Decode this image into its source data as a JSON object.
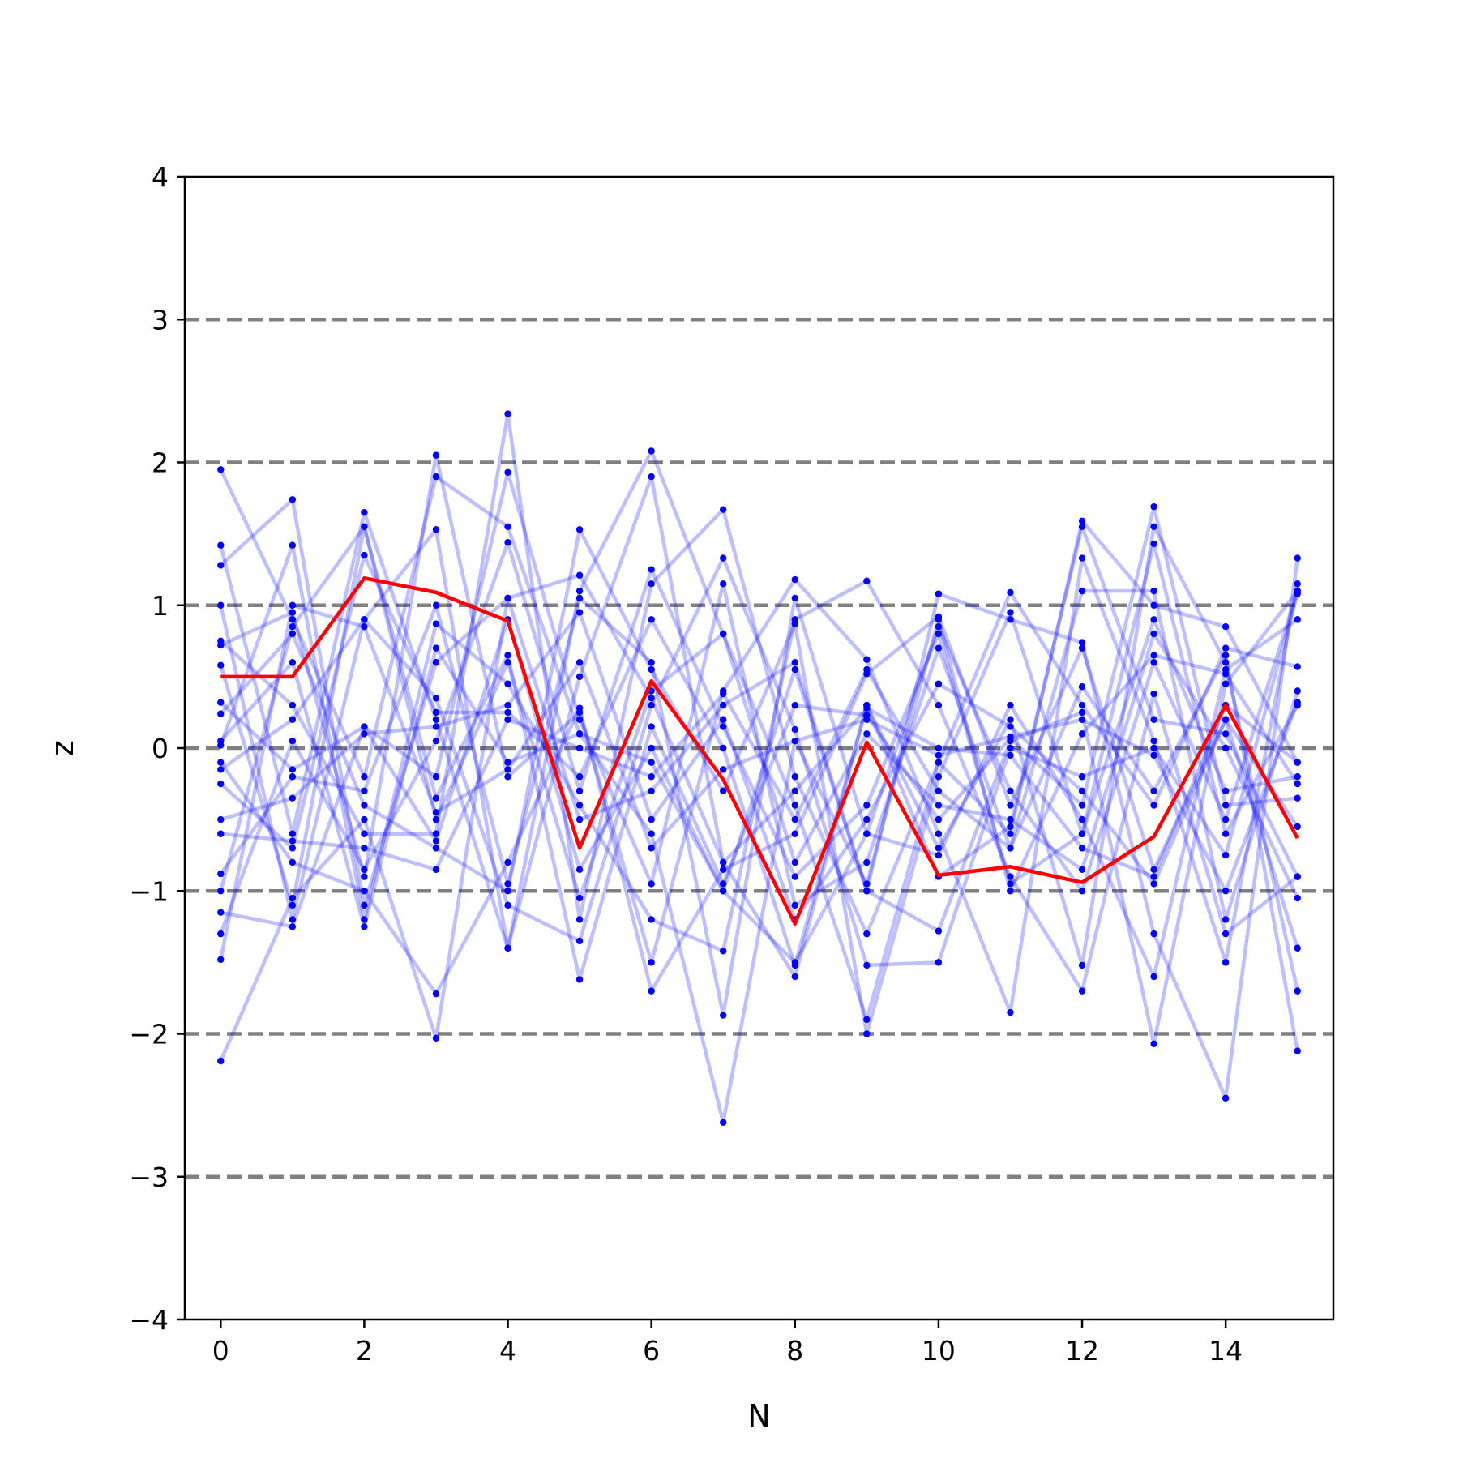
{
  "chart_data": {
    "type": "line",
    "xlabel": "N",
    "ylabel": "z",
    "xlim": [
      -0.5,
      15.5
    ],
    "ylim": [
      -4,
      4
    ],
    "xticks": [
      0,
      2,
      4,
      6,
      8,
      10,
      12,
      14
    ],
    "xtick_labels": [
      "0",
      "2",
      "4",
      "6",
      "8",
      "10",
      "12",
      "14"
    ],
    "yticks": [
      -4,
      -3,
      -2,
      -1,
      0,
      1,
      2,
      3,
      4
    ],
    "ytick_labels": [
      "−4",
      "−3",
      "−2",
      "−1",
      "0",
      "1",
      "2",
      "3",
      "4"
    ],
    "reference_lines": [
      -3,
      -2,
      -1,
      0,
      1,
      2,
      3
    ],
    "grid": false,
    "legend": "none",
    "colors": {
      "samples": "#0000ff",
      "highlight": "#ff0000",
      "reference": "#808080",
      "axes": "#000000"
    },
    "x": [
      0,
      1,
      2,
      3,
      4,
      5,
      6,
      7,
      8,
      9,
      10,
      11,
      12,
      13,
      14,
      15
    ],
    "highlight_series": {
      "values": [
        0.5,
        0.5,
        1.19,
        1.09,
        0.89,
        -0.7,
        0.47,
        -0.22,
        -1.23,
        0.04,
        -0.89,
        -0.83,
        -0.94,
        -0.62,
        0.3,
        -0.63
      ]
    },
    "series": [
      {
        "values": [
          1.95,
          0.9,
          -0.2,
          1.9,
          1.55,
          0.1,
          -0.1,
          -1.0,
          -1.5,
          -0.6,
          0.85,
          -0.3,
          -1.0,
          0.6,
          -0.5,
          1.1
        ]
      },
      {
        "values": [
          1.42,
          -0.6,
          1.65,
          0.2,
          -1.4,
          1.1,
          2.08,
          0.8,
          -0.4,
          -1.9,
          -0.1,
          -0.6,
          1.59,
          1.0,
          0.85,
          -0.1
        ]
      },
      {
        "values": [
          1.28,
          1.74,
          -1.1,
          0.6,
          1.05,
          -0.5,
          -0.3,
          0.3,
          0.6,
          -1.0,
          1.08,
          0.9,
          0.74,
          -1.3,
          -2.45,
          1.33
        ]
      },
      {
        "values": [
          1.0,
          -1.2,
          0.9,
          1.53,
          -1.4,
          0.5,
          1.9,
          -0.8,
          -1.6,
          0.3,
          -0.7,
          0.2,
          -1.52,
          1.55,
          0.6,
          -1.7
        ]
      },
      {
        "values": [
          0.75,
          0.3,
          -0.6,
          -0.6,
          2.34,
          -1.2,
          1.15,
          1.67,
          -0.2,
          -1.3,
          -0.1,
          1.09,
          0.3,
          -0.4,
          0.7,
          0.57
        ]
      },
      {
        "values": [
          0.72,
          0.95,
          -0.9,
          2.05,
          -0.2,
          0.25,
          -1.5,
          0.4,
          1.18,
          0.62,
          -0.6,
          -1.85,
          1.33,
          0.05,
          -1.5,
          1.15
        ]
      },
      {
        "values": [
          0.58,
          -1.1,
          1.55,
          -0.35,
          0.65,
          -1.62,
          0.15,
          -0.95,
          0.3,
          0.23,
          -0.5,
          0.07,
          -0.4,
          1.69,
          -0.4,
          -0.35
        ]
      },
      {
        "values": [
          0.32,
          -0.15,
          0.15,
          -0.2,
          1.93,
          0.2,
          -0.95,
          1.15,
          -1.1,
          -0.8,
          0.7,
          -0.7,
          0.43,
          -0.3,
          0.65,
          -2.12
        ]
      },
      {
        "values": [
          0.24,
          0.8,
          -0.4,
          -0.7,
          -1.0,
          1.53,
          0.55,
          -0.3,
          0.87,
          -2.0,
          -0.2,
          0.95,
          -0.6,
          1.43,
          -0.6,
          0.3
        ]
      },
      {
        "values": [
          0.02,
          1.42,
          -1.2,
          0.87,
          0.45,
          -0.4,
          -1.2,
          -1.42,
          0.9,
          1.17,
          0.3,
          -0.9,
          -1.7,
          0.38,
          -1.3,
          -0.9
        ]
      },
      {
        "values": [
          -0.1,
          -0.8,
          -1.0,
          -1.72,
          -0.8,
          0.28,
          -1.7,
          -0.85,
          -0.6,
          0.52,
          0.92,
          -0.4,
          0.7,
          -0.85,
          0.2,
          -1.4
        ]
      },
      {
        "values": [
          -0.15,
          0.2,
          0.9,
          0.35,
          -1.1,
          -1.35,
          0.3,
          1.33,
          0.13,
          -1.52,
          -1.5,
          0.0,
          -0.2,
          0.0,
          -0.75,
          1.08
        ]
      },
      {
        "values": [
          -0.5,
          -0.35,
          0.1,
          0.15,
          0.3,
          0.95,
          -0.5,
          0.2,
          -1.2,
          -0.5,
          0.45,
          0.15,
          -0.3,
          -0.95,
          0.2,
          -0.55
        ]
      },
      {
        "values": [
          -0.6,
          -0.65,
          -0.7,
          -0.85,
          0.2,
          0.0,
          -0.2,
          0.38,
          -0.5,
          0.55,
          -0.3,
          -0.7,
          1.1,
          1.1,
          -1.2,
          0.4
        ]
      },
      {
        "values": [
          -0.88,
          -0.2,
          -0.3,
          1.0,
          -0.95,
          1.05,
          0.6,
          -1.87,
          1.05,
          -0.6,
          -0.75,
          0.3,
          -0.5,
          -1.6,
          0.55,
          0.9
        ]
      },
      {
        "values": [
          -1.0,
          0.85,
          1.55,
          -0.5,
          0.6,
          -1.05,
          0.4,
          0.8,
          -0.8,
          0.1,
          -0.4,
          -0.5,
          -0.85,
          0.8,
          0.0,
          -1.05
        ]
      },
      {
        "values": [
          -1.15,
          -1.25,
          0.15,
          -0.65,
          0.9,
          -0.85,
          0.0,
          -1.0,
          0.55,
          -1.0,
          -1.28,
          0.05,
          0.25,
          -2.07,
          0.45,
          1.1
        ]
      },
      {
        "values": [
          -1.3,
          0.05,
          -0.85,
          0.05,
          1.44,
          -0.3,
          1.25,
          0.15,
          -0.9,
          -0.4,
          0.8,
          -0.95,
          -0.6,
          0.9,
          -0.3,
          -0.2
        ]
      },
      {
        "values": [
          -1.48,
          1.0,
          0.85,
          -0.45,
          -0.15,
          0.6,
          -0.7,
          -0.15,
          0.05,
          0.2,
          -0.05,
          0.08,
          0.2,
          -0.05,
          -1.0,
          0.32
        ]
      },
      {
        "values": [
          -2.19,
          -1.05,
          -0.5,
          -2.03,
          1.05,
          1.21,
          0.35,
          -0.8,
          -0.3,
          0.28,
          0.0,
          -0.05,
          -0.7,
          -0.9,
          0.3,
          -0.1
        ]
      },
      {
        "values": [
          0.05,
          0.6,
          -1.25,
          0.7,
          -0.1,
          0.1,
          -0.6,
          -2.62,
          0.05,
          -0.95,
          0.9,
          -1.0,
          0.1,
          0.65,
          0.52,
          -0.25
        ]
      },
      {
        "values": [
          -0.25,
          -0.7,
          1.35,
          0.25,
          0.25,
          -0.2,
          0.9,
          0.0,
          -1.52,
          0.3,
          -0.9,
          -0.55,
          1.55,
          0.2,
          0.1,
          -0.9
        ]
      }
    ]
  }
}
